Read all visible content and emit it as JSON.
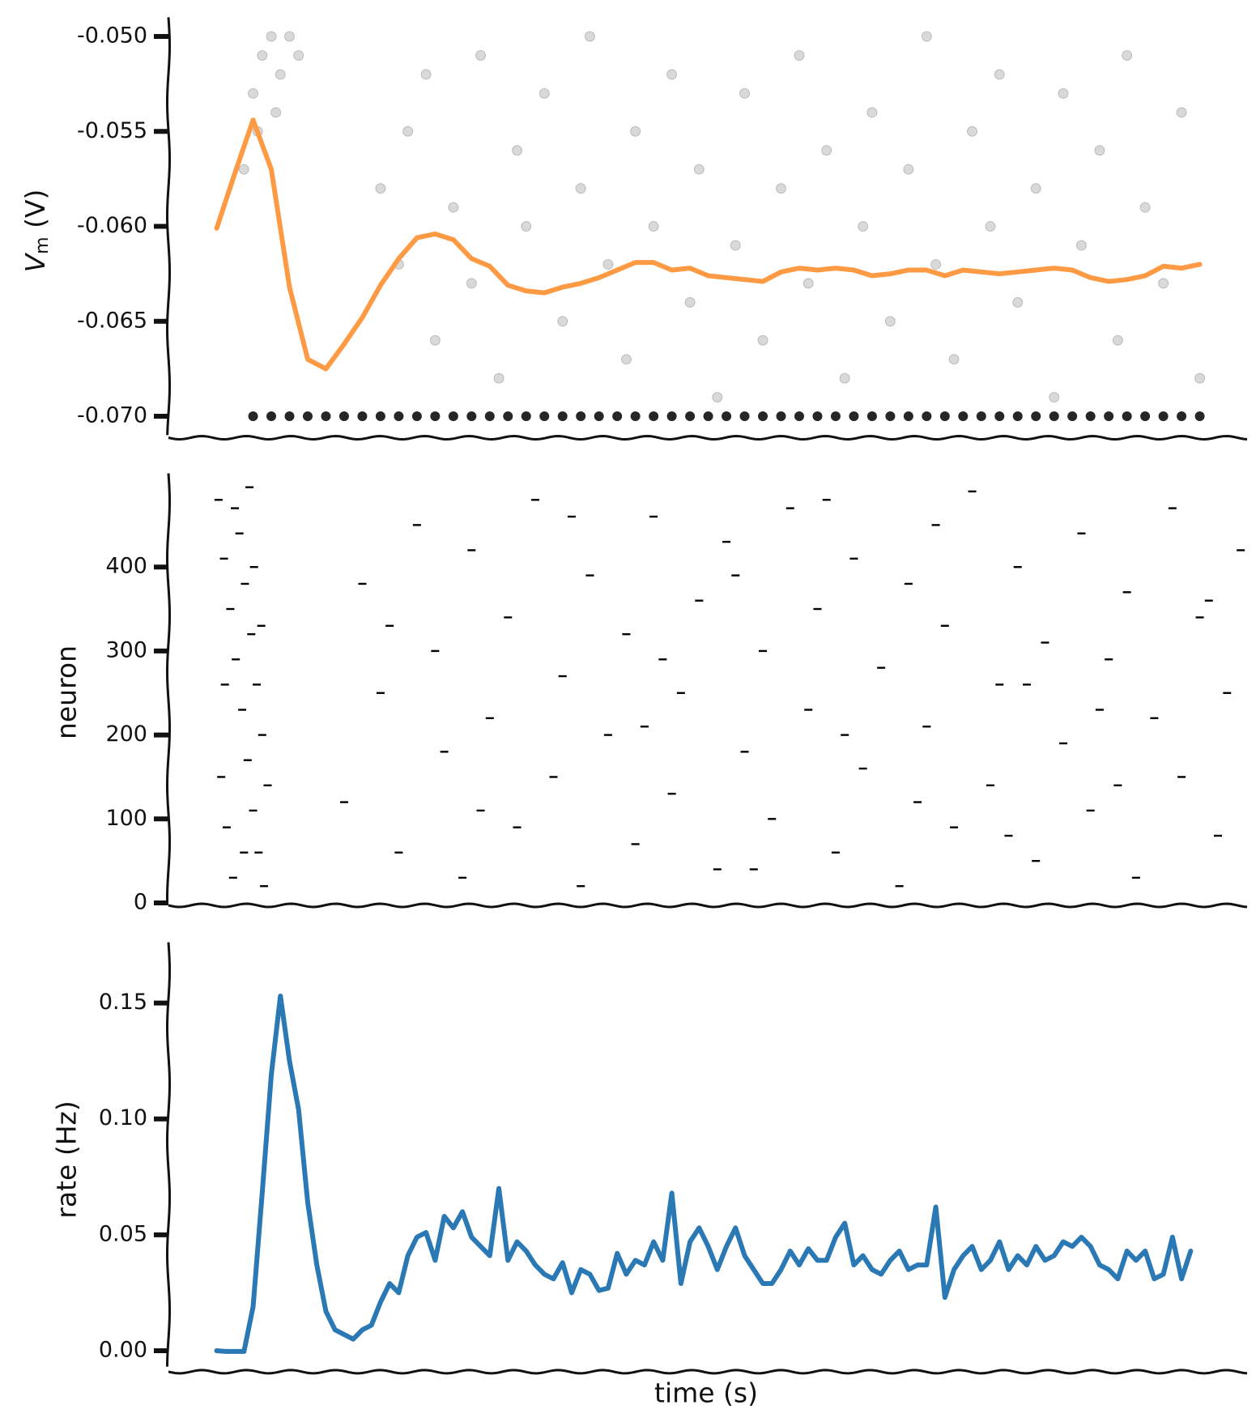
{
  "chart_data": [
    {
      "type": "vm",
      "ylabel_parts": [
        "V",
        "m",
        " (V)"
      ],
      "xlim": [
        -5.3,
        113.2
      ],
      "ylim": [
        -0.071,
        -0.0495
      ],
      "yticks": [
        {
          "value": -0.07,
          "label": "-0.070"
        },
        {
          "value": -0.065,
          "label": "-0.065"
        },
        {
          "value": -0.06,
          "label": "-0.060"
        },
        {
          "value": -0.055,
          "label": "-0.055"
        },
        {
          "value": -0.05,
          "label": "-0.050"
        }
      ],
      "grid": false,
      "cloud": {
        "color": "#000000",
        "x": [
          3,
          4,
          5,
          6,
          7,
          8,
          9,
          4.5,
          6.5,
          18,
          20,
          21,
          23,
          24,
          26,
          28,
          29,
          31,
          33,
          34,
          36,
          38,
          40,
          41,
          43,
          45,
          46,
          48,
          50,
          52,
          53,
          55,
          57,
          58,
          60,
          62,
          64,
          65,
          67,
          69,
          71,
          72,
          74,
          76,
          78,
          79,
          81,
          83,
          85,
          86,
          88,
          90,
          92,
          93,
          95,
          97,
          99,
          100,
          102,
          104,
          106,
          108
        ],
        "values": [
          -0.057,
          -0.053,
          -0.051,
          -0.05,
          -0.052,
          -0.05,
          -0.051,
          -0.055,
          -0.054,
          -0.058,
          -0.062,
          -0.055,
          -0.052,
          -0.066,
          -0.059,
          -0.063,
          -0.051,
          -0.068,
          -0.056,
          -0.06,
          -0.053,
          -0.065,
          -0.058,
          -0.05,
          -0.062,
          -0.067,
          -0.055,
          -0.06,
          -0.052,
          -0.064,
          -0.057,
          -0.069,
          -0.061,
          -0.053,
          -0.066,
          -0.058,
          -0.051,
          -0.063,
          -0.056,
          -0.068,
          -0.06,
          -0.054,
          -0.065,
          -0.057,
          -0.05,
          -0.062,
          -0.067,
          -0.055,
          -0.06,
          -0.052,
          -0.064,
          -0.058,
          -0.069,
          -0.053,
          -0.061,
          -0.056,
          -0.066,
          -0.051,
          -0.059,
          -0.063,
          -0.054,
          -0.068
        ]
      },
      "reset": {
        "color": "#000000",
        "x": [
          4,
          6,
          8,
          10,
          12,
          14,
          16,
          18,
          20,
          22,
          24,
          26,
          28,
          30,
          32,
          34,
          36,
          38,
          40,
          42,
          44,
          46,
          48,
          50,
          52,
          54,
          56,
          58,
          60,
          62,
          64,
          66,
          68,
          70,
          72,
          74,
          76,
          78,
          80,
          82,
          84,
          86,
          88,
          90,
          92,
          94,
          96,
          98,
          100,
          102,
          104,
          106,
          108
        ],
        "values": [
          -0.07,
          -0.07,
          -0.07,
          -0.07,
          -0.07,
          -0.07,
          -0.07,
          -0.07,
          -0.07,
          -0.07,
          -0.07,
          -0.07,
          -0.07,
          -0.07,
          -0.07,
          -0.07,
          -0.07,
          -0.07,
          -0.07,
          -0.07,
          -0.07,
          -0.07,
          -0.07,
          -0.07,
          -0.07,
          -0.07,
          -0.07,
          -0.07,
          -0.07,
          -0.07,
          -0.07,
          -0.07,
          -0.07,
          -0.07,
          -0.07,
          -0.07,
          -0.07,
          -0.07,
          -0.07,
          -0.07,
          -0.07,
          -0.07,
          -0.07,
          -0.07,
          -0.07,
          -0.07,
          -0.07,
          -0.07,
          -0.07,
          -0.07,
          -0.07,
          -0.07,
          -0.07
        ]
      },
      "series": [
        {
          "color": "#ff9a44",
          "x": [
            0,
            2,
            4,
            6,
            8,
            10,
            12,
            14,
            16,
            18,
            20,
            22,
            24,
            26,
            28,
            30,
            32,
            34,
            36,
            38,
            40,
            42,
            44,
            46,
            48,
            50,
            52,
            54,
            56,
            58,
            60,
            62,
            64,
            66,
            68,
            70,
            72,
            74,
            76,
            78,
            80,
            82,
            84,
            86,
            88,
            90,
            92,
            94,
            96,
            98,
            100,
            102,
            104,
            106,
            108
          ],
          "values": [
            -0.0601,
            -0.0572,
            -0.0544,
            -0.057,
            -0.0632,
            -0.067,
            -0.0675,
            -0.0662,
            -0.0648,
            -0.0631,
            -0.0617,
            -0.0606,
            -0.0604,
            -0.0607,
            -0.0617,
            -0.0621,
            -0.0631,
            -0.0634,
            -0.0635,
            -0.0632,
            -0.063,
            -0.0627,
            -0.0623,
            -0.0619,
            -0.0619,
            -0.0623,
            -0.0622,
            -0.0626,
            -0.0627,
            -0.0628,
            -0.0629,
            -0.0624,
            -0.0622,
            -0.0623,
            -0.0622,
            -0.0623,
            -0.0626,
            -0.0625,
            -0.0623,
            -0.0623,
            -0.0626,
            -0.0623,
            -0.0624,
            -0.0625,
            -0.0624,
            -0.0623,
            -0.0622,
            -0.0623,
            -0.0627,
            -0.0629,
            -0.0628,
            -0.0626,
            -0.0621,
            -0.0622,
            -0.062
          ]
        }
      ]
    },
    {
      "type": "raster",
      "ylabel": "neuron",
      "xlim": [
        -5.3,
        113.2
      ],
      "ylim": [
        0,
        500
      ],
      "yticks": [
        0,
        100,
        200,
        300,
        400
      ],
      "grid": false,
      "color": "#000000",
      "x": [
        0.2,
        0.8,
        1.5,
        2.1,
        2.8,
        3.4,
        4.0,
        4.6,
        5.2,
        0.5,
        1.1,
        1.8,
        2.5,
        3.1,
        3.8,
        4.4,
        5.0,
        5.6,
        0.9,
        2.0,
        3.0,
        4.1,
        4.9,
        3.6,
        14,
        16,
        18,
        20,
        22,
        24,
        25,
        27,
        28,
        30,
        32,
        33,
        35,
        37,
        38,
        40,
        41,
        43,
        45,
        46,
        48,
        50,
        51,
        53,
        55,
        56,
        58,
        60,
        61,
        63,
        65,
        66,
        68,
        70,
        71,
        73,
        75,
        76,
        78,
        80,
        81,
        83,
        85,
        86,
        88,
        90,
        91,
        93,
        95,
        96,
        98,
        100,
        101,
        103,
        105,
        106,
        108,
        110,
        111,
        112.5,
        19,
        29,
        39,
        49,
        59,
        69,
        79,
        89,
        99,
        109,
        47,
        67,
        87,
        57,
        77,
        97
      ],
      "values": [
        480,
        410,
        350,
        290,
        230,
        170,
        110,
        60,
        20,
        150,
        90,
        30,
        440,
        380,
        320,
        260,
        200,
        140,
        260,
        470,
        60,
        400,
        330,
        495,
        120,
        380,
        250,
        60,
        450,
        300,
        180,
        30,
        420,
        220,
        340,
        90,
        480,
        150,
        270,
        20,
        390,
        200,
        320,
        70,
        460,
        130,
        250,
        360,
        40,
        430,
        180,
        300,
        100,
        470,
        230,
        350,
        60,
        410,
        160,
        280,
        20,
        380,
        210,
        330,
        90,
        490,
        140,
        260,
        400,
        50,
        310,
        190,
        440,
        110,
        290,
        370,
        30,
        220,
        470,
        150,
        340,
        80,
        250,
        420,
        330,
        110,
        460,
        290,
        40,
        200,
        450,
        260,
        140,
        360,
        210,
        480,
        80,
        390,
        120,
        230
      ]
    },
    {
      "type": "line",
      "ylabel": "rate (Hz)",
      "xlabel": "time (s)",
      "xlim": [
        -5.3,
        113.2
      ],
      "ylim": [
        -0.008,
        0.172
      ],
      "yticks": [
        {
          "value": 0,
          "label": "0.00"
        },
        {
          "value": 0.05,
          "label": "0.05"
        },
        {
          "value": 0.1,
          "label": "0.10"
        },
        {
          "value": 0.15,
          "label": "0.15"
        }
      ],
      "grid": false,
      "series": [
        {
          "color": "#2a78b4",
          "x": [
            0,
            1,
            2,
            3,
            4,
            5,
            6,
            7,
            8,
            9,
            10,
            11,
            12,
            13,
            14,
            15,
            16,
            17,
            18,
            19,
            20,
            21,
            22,
            23,
            24,
            25,
            26,
            27,
            28,
            29,
            30,
            31,
            32,
            33,
            34,
            35,
            36,
            37,
            38,
            39,
            40,
            41,
            42,
            43,
            44,
            45,
            46,
            47,
            48,
            49,
            50,
            51,
            52,
            53,
            54,
            55,
            56,
            57,
            58,
            59,
            60,
            61,
            62,
            63,
            64,
            65,
            66,
            67,
            68,
            69,
            70,
            71,
            72,
            73,
            74,
            75,
            76,
            77,
            78,
            79,
            80,
            81,
            82,
            83,
            84,
            85,
            86,
            87,
            88,
            89,
            90,
            91,
            92,
            93,
            94,
            95,
            96,
            97,
            98,
            99,
            100,
            101,
            102,
            103,
            104,
            105,
            106,
            107
          ],
          "values": [
            0.0,
            -0.0003,
            -0.0003,
            -0.0003,
            0.019,
            0.068,
            0.119,
            0.153,
            0.125,
            0.104,
            0.064,
            0.037,
            0.017,
            0.009,
            0.007,
            0.005,
            0.009,
            0.011,
            0.021,
            0.029,
            0.025,
            0.041,
            0.049,
            0.051,
            0.039,
            0.058,
            0.053,
            0.06,
            0.049,
            0.045,
            0.041,
            0.07,
            0.039,
            0.047,
            0.043,
            0.037,
            0.033,
            0.031,
            0.038,
            0.025,
            0.035,
            0.033,
            0.026,
            0.027,
            0.042,
            0.033,
            0.039,
            0.037,
            0.047,
            0.039,
            0.068,
            0.029,
            0.047,
            0.053,
            0.045,
            0.035,
            0.045,
            0.053,
            0.041,
            0.035,
            0.029,
            0.029,
            0.035,
            0.043,
            0.037,
            0.044,
            0.039,
            0.039,
            0.049,
            0.055,
            0.037,
            0.041,
            0.035,
            0.033,
            0.039,
            0.043,
            0.035,
            0.037,
            0.037,
            0.062,
            0.023,
            0.035,
            0.041,
            0.045,
            0.035,
            0.039,
            0.047,
            0.035,
            0.041,
            0.037,
            0.045,
            0.039,
            0.041,
            0.047,
            0.045,
            0.049,
            0.045,
            0.037,
            0.035,
            0.031,
            0.043,
            0.039,
            0.043,
            0.031,
            0.033,
            0.049,
            0.031,
            0.043
          ]
        }
      ]
    }
  ]
}
